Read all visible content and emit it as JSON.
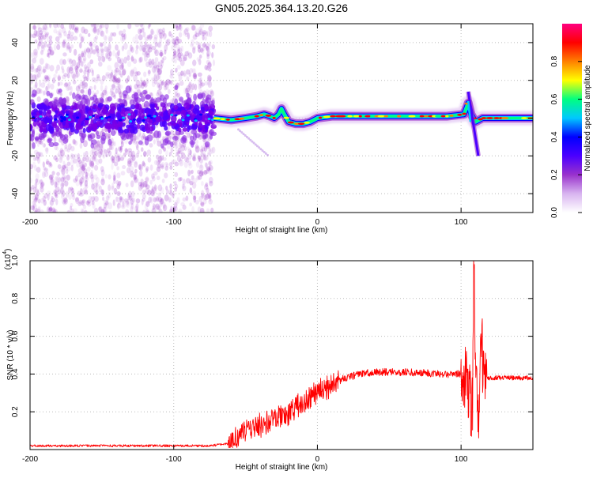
{
  "title": "GN05.2025.364.13.20.G26",
  "chart_data": [
    {
      "type": "heatmap",
      "name": "spectrogram",
      "xlabel": "Height of straight line (km)",
      "ylabel": "Frequency (Hz)",
      "xlim": [
        -200,
        150
      ],
      "ylim": [
        -50,
        50
      ],
      "xticks": [
        -200,
        -100,
        0,
        100
      ],
      "yticks": [
        -40,
        -20,
        0,
        20,
        40
      ],
      "grid": true,
      "colorbar": {
        "label": "Normalized spectral amplitude",
        "range": [
          0,
          1
        ],
        "ticks": [
          "0.0",
          "0.2",
          "0.4",
          "0.6",
          "0.8"
        ],
        "tick_values": [
          0.0,
          0.2,
          0.4,
          0.6,
          0.8
        ],
        "colors": [
          "#ffffff",
          "#d8b4f0",
          "#9932cc",
          "#4b00ff",
          "#0000ff",
          "#00c8ff",
          "#00ff80",
          "#ffff00",
          "#ff8000",
          "#ff0000",
          "#ff0080"
        ]
      },
      "noise_region": {
        "x": [
          -200,
          -72
        ],
        "freq_spread": 50
      },
      "ridge": [
        [
          -72,
          0
        ],
        [
          -60,
          -1
        ],
        [
          -50,
          0
        ],
        [
          -42,
          1
        ],
        [
          -37,
          2
        ],
        [
          -33,
          1
        ],
        [
          -30,
          0
        ],
        [
          -27,
          2
        ],
        [
          -25,
          5
        ],
        [
          -23,
          2
        ],
        [
          -20,
          -2
        ],
        [
          -15,
          -3
        ],
        [
          -10,
          -3
        ],
        [
          -5,
          -2
        ],
        [
          0,
          0
        ],
        [
          10,
          1
        ],
        [
          30,
          1
        ],
        [
          60,
          1
        ],
        [
          90,
          1
        ],
        [
          102,
          2
        ],
        [
          105,
          8
        ],
        [
          107,
          2
        ],
        [
          110,
          -2
        ],
        [
          115,
          0
        ],
        [
          150,
          0
        ]
      ],
      "spur": {
        "x": [
          105,
          112
        ],
        "freq": [
          14,
          -20
        ]
      }
    },
    {
      "type": "line",
      "name": "snr",
      "xlabel": "Height of straight line (km)",
      "ylabel": "SNR (10 * v/v)",
      "scale_note": "(x10",
      "scale_exponent": "4",
      "xlim": [
        -200,
        150
      ],
      "ylim": [
        0,
        1.0
      ],
      "xticks": [
        -200,
        -100,
        0,
        100
      ],
      "yticks": [
        0.2,
        0.4,
        0.6,
        0.8,
        1.0
      ],
      "color": "#ff0000",
      "trend": [
        [
          -200,
          0.02
        ],
        [
          -75,
          0.02
        ],
        [
          -62,
          0.03
        ],
        [
          -55,
          0.07
        ],
        [
          -45,
          0.11
        ],
        [
          -35,
          0.14
        ],
        [
          -25,
          0.17
        ],
        [
          -20,
          0.19
        ],
        [
          -15,
          0.22
        ],
        [
          -10,
          0.25
        ],
        [
          -5,
          0.28
        ],
        [
          0,
          0.31
        ],
        [
          10,
          0.35
        ],
        [
          20,
          0.38
        ],
        [
          30,
          0.4
        ],
        [
          40,
          0.41
        ],
        [
          60,
          0.41
        ],
        [
          90,
          0.4
        ],
        [
          100,
          0.4
        ],
        [
          104,
          0.38
        ],
        [
          107,
          0.25
        ],
        [
          109,
          0.8
        ],
        [
          111,
          0.35
        ],
        [
          114,
          0.55
        ],
        [
          116,
          0.38
        ],
        [
          150,
          0.38
        ]
      ]
    }
  ]
}
